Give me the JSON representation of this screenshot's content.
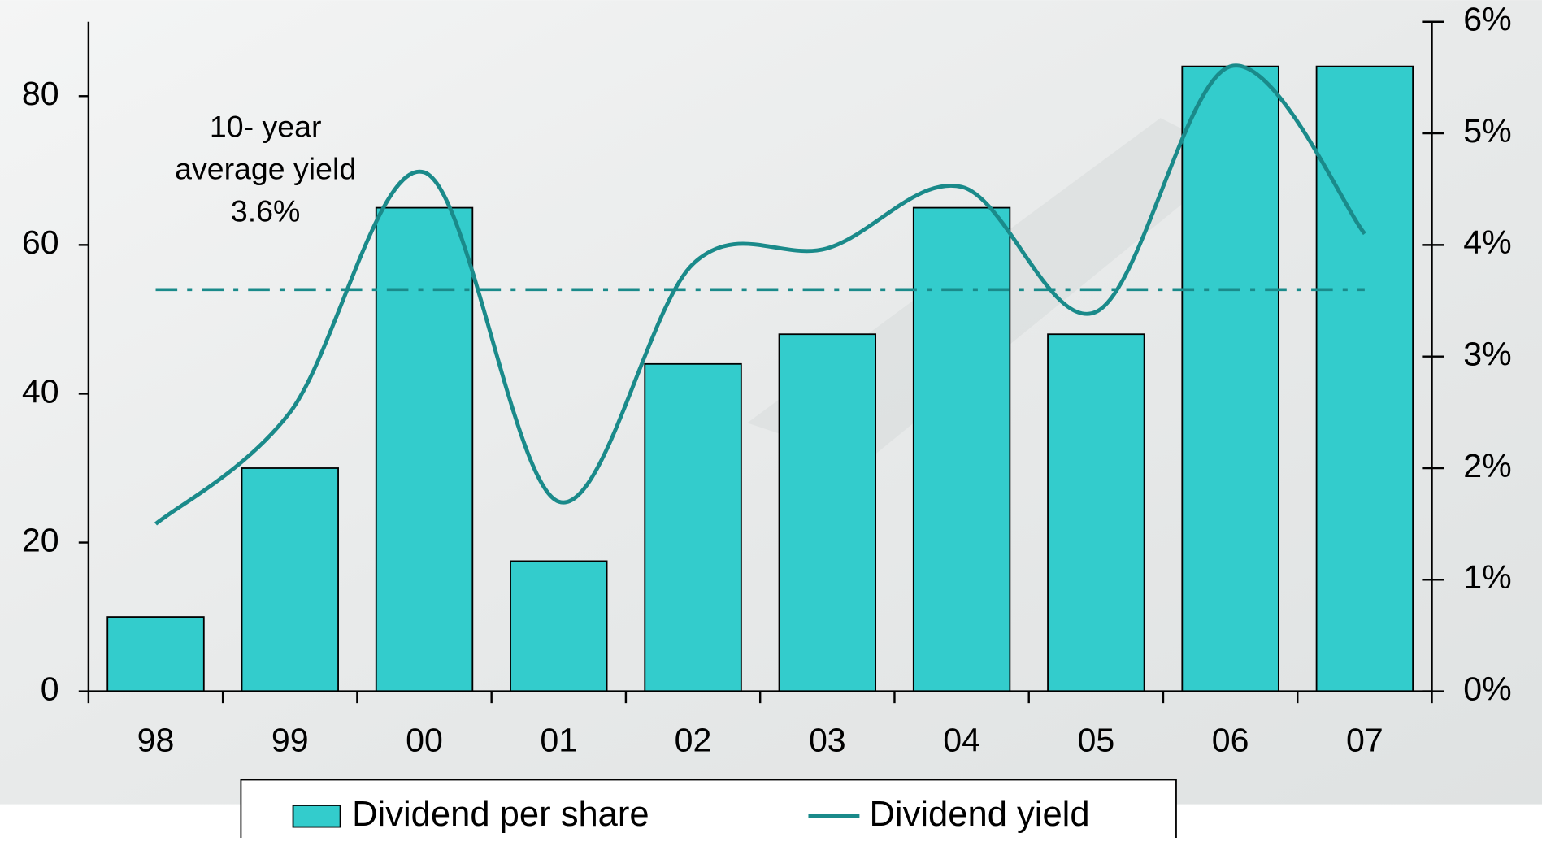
{
  "chart_data": {
    "type": "bar-line",
    "categories": [
      "98",
      "99",
      "00",
      "01",
      "02",
      "03",
      "04",
      "05",
      "06",
      "07"
    ],
    "series": [
      {
        "name": "Dividend per share",
        "type": "bar",
        "color": "#33cccc",
        "values": [
          10,
          30,
          65,
          17.5,
          44,
          48,
          65,
          48,
          84,
          84
        ]
      },
      {
        "name": "Dividend yield",
        "type": "line",
        "axis": "y2",
        "color": "#1a8a8a",
        "values": [
          1.5,
          2.5,
          4.65,
          1.7,
          3.83,
          3.97,
          4.52,
          3.4,
          5.6,
          4.1
        ]
      }
    ],
    "average": {
      "value": 3.6,
      "label_lines": [
        "10- year",
        "average yield",
        "3.6%"
      ]
    },
    "ylim": [
      0,
      90
    ],
    "yticks": [
      0,
      20,
      40,
      60,
      80
    ],
    "y2lim": [
      0,
      6
    ],
    "y2ticks": [
      {
        "value": 0,
        "label": "0%"
      },
      {
        "value": 1,
        "label": "1%"
      },
      {
        "value": 2,
        "label": "2%"
      },
      {
        "value": 3,
        "label": "3%"
      },
      {
        "value": 4,
        "label": "4%"
      },
      {
        "value": 5,
        "label": "5%"
      },
      {
        "value": 6,
        "label": "6%"
      }
    ],
    "legend": "bottom"
  }
}
